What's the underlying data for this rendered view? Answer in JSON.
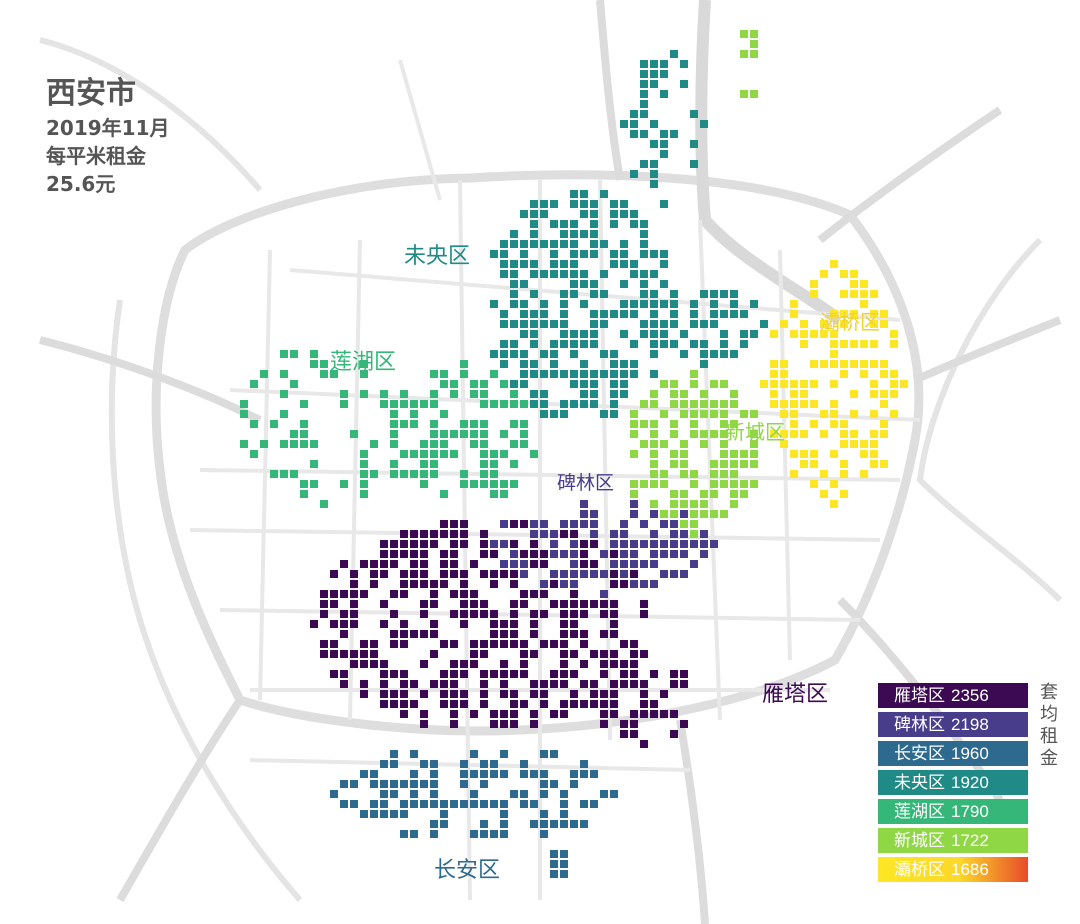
{
  "title": {
    "city": "西安市",
    "date": "2019年11月",
    "metric": "每平米租金",
    "value": "25.6元"
  },
  "districts": [
    {
      "id": "yanta",
      "name": "雁塔区",
      "rent": "2356",
      "color": "#3b0a52",
      "label_color": "#3b0a52"
    },
    {
      "id": "beilin",
      "name": "碑林区",
      "rent": "2198",
      "color": "#483d8b",
      "label_color": "#483d8b"
    },
    {
      "id": "changan",
      "name": "长安区",
      "rent": "1960",
      "color": "#2e6a8e",
      "label_color": "#2e6a8e"
    },
    {
      "id": "weiyang",
      "name": "未央区",
      "rent": "1920",
      "color": "#1f8a86",
      "label_color": "#1f8a86"
    },
    {
      "id": "lianhu",
      "name": "莲湖区",
      "rent": "1790",
      "color": "#35b779",
      "label_color": "#35b779"
    },
    {
      "id": "xincheng",
      "name": "新城区",
      "rent": "1722",
      "color": "#8fd744",
      "label_color": "#8fd744"
    },
    {
      "id": "baqiao",
      "name": "灞桥区",
      "rent": "1686",
      "color": "#fde725",
      "label_color": "#f2d22e"
    }
  ],
  "legend_title": "套均租金",
  "legend_gradient_end": "#e84b2a",
  "colors": {
    "road": "#dedede",
    "road_minor": "#ececec",
    "text_gray": "#555555"
  }
}
